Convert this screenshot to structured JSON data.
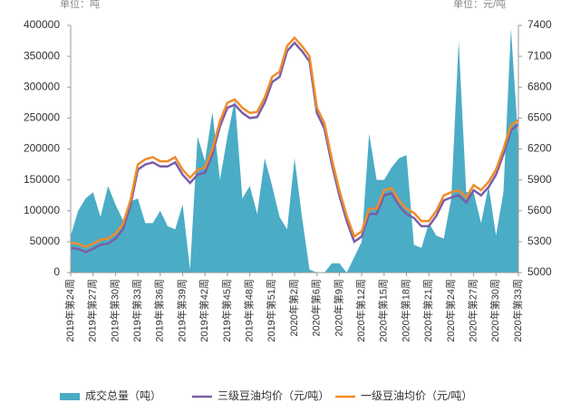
{
  "chart_data": {
    "type": "area_line",
    "y_unit": "单位：吨",
    "y2_unit": "单位：元/吨",
    "categories": [
      "2019年第24周",
      null,
      null,
      "2019年第27周",
      null,
      null,
      "2019年第30周",
      null,
      null,
      "2019年第33周",
      null,
      null,
      "2019年第36周",
      null,
      null,
      "2019年第39周",
      null,
      null,
      "2019年第42周",
      null,
      null,
      "2019年第45周",
      null,
      null,
      "2019年第48周",
      null,
      null,
      "2019年第51周",
      null,
      null,
      "2020年第2周",
      null,
      null,
      "2020年第6周",
      null,
      null,
      "2020年第9周",
      null,
      null,
      "2020年第12周",
      null,
      null,
      "2020年第15周",
      null,
      null,
      "2020年第18周",
      null,
      null,
      "2020年第21周",
      null,
      null,
      "2020年第24周",
      null,
      null,
      "2020年第27周",
      null,
      null,
      "2020年第30周",
      null,
      null,
      "2020年第33周"
    ],
    "series": [
      {
        "name": "成交总量（吨）",
        "color": "#4bacc6",
        "axis": "y",
        "values": [
          60000,
          100000,
          120000,
          130000,
          90000,
          140000,
          110000,
          85000,
          115000,
          120000,
          80000,
          80000,
          100000,
          75000,
          70000,
          110000,
          5000,
          220000,
          180000,
          260000,
          150000,
          220000,
          280000,
          120000,
          140000,
          95000,
          185000,
          140000,
          90000,
          70000,
          185000,
          90000,
          5000,
          0,
          0,
          15000,
          15000,
          0,
          25000,
          50000,
          225000,
          150000,
          150000,
          170000,
          185000,
          190000,
          45000,
          40000,
          80000,
          60000,
          55000,
          120000,
          375000,
          130000,
          130000,
          80000,
          140000,
          60000,
          130000,
          395000,
          210000
        ]
      },
      {
        "name": "三级豆油均价（元/吨）",
        "color": "#7b5ea7",
        "axis": "y2",
        "values": [
          5240,
          5230,
          5200,
          5230,
          5270,
          5280,
          5330,
          5420,
          5650,
          6000,
          6050,
          6070,
          6030,
          6030,
          6070,
          5950,
          5870,
          5950,
          5970,
          6150,
          6420,
          6600,
          6630,
          6550,
          6500,
          6510,
          6650,
          6850,
          6900,
          7150,
          7230,
          7150,
          7050,
          6550,
          6400,
          6050,
          5750,
          5500,
          5300,
          5350,
          5570,
          5570,
          5750,
          5770,
          5650,
          5570,
          5530,
          5450,
          5450,
          5550,
          5700,
          5730,
          5750,
          5680,
          5800,
          5750,
          5830,
          5950,
          6150,
          6380,
          6440
        ]
      },
      {
        "name": "一级豆油均价（元/吨）",
        "color": "#f08c2a",
        "axis": "y2",
        "values": [
          5290,
          5280,
          5250,
          5280,
          5320,
          5330,
          5380,
          5470,
          5700,
          6050,
          6100,
          6120,
          6080,
          6080,
          6120,
          6000,
          5920,
          6000,
          6020,
          6200,
          6470,
          6650,
          6680,
          6600,
          6550,
          6560,
          6700,
          6900,
          6950,
          7200,
          7280,
          7200,
          7100,
          6600,
          6450,
          6100,
          5800,
          5550,
          5350,
          5400,
          5620,
          5620,
          5800,
          5820,
          5700,
          5620,
          5580,
          5500,
          5500,
          5600,
          5750,
          5780,
          5800,
          5730,
          5850,
          5800,
          5880,
          6000,
          6200,
          6430,
          6480
        ]
      }
    ],
    "ylim": [
      0,
      400000
    ],
    "yticks": [
      0,
      50000,
      100000,
      150000,
      200000,
      250000,
      300000,
      350000,
      400000
    ],
    "y2lim": [
      5000,
      7400
    ],
    "y2ticks": [
      5000,
      5300,
      5600,
      5900,
      6200,
      6500,
      6800,
      7100,
      7400
    ],
    "legend": "bottom"
  }
}
